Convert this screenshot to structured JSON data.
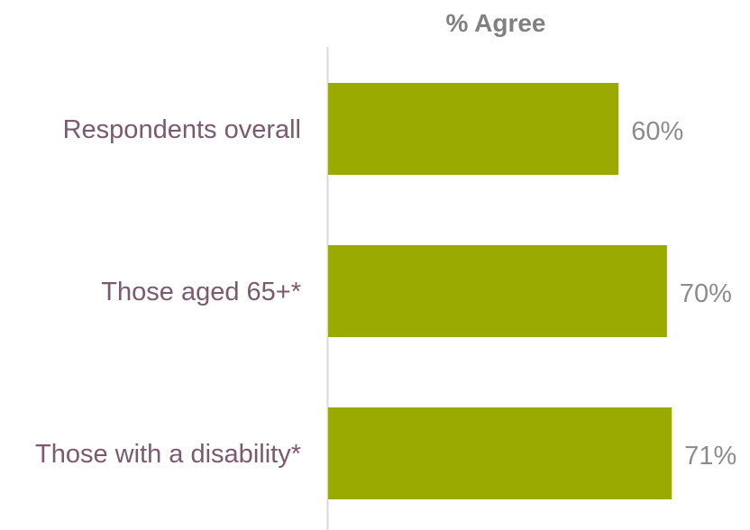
{
  "chart_data": {
    "type": "bar",
    "orientation": "horizontal",
    "title": "% Agree",
    "categories": [
      "Respondents overall",
      "Those aged 65+*",
      "Those with a disability*"
    ],
    "values": [
      60,
      70,
      71
    ],
    "value_labels": [
      "60%",
      "70%",
      "71%"
    ],
    "grid": false,
    "legend": "none"
  },
  "colors": {
    "bar": "#9aaa00",
    "axis": "#d9d9d9",
    "category_text": "#7b5a6f",
    "value_text": "#8c8c8c",
    "title_text": "#808080"
  }
}
